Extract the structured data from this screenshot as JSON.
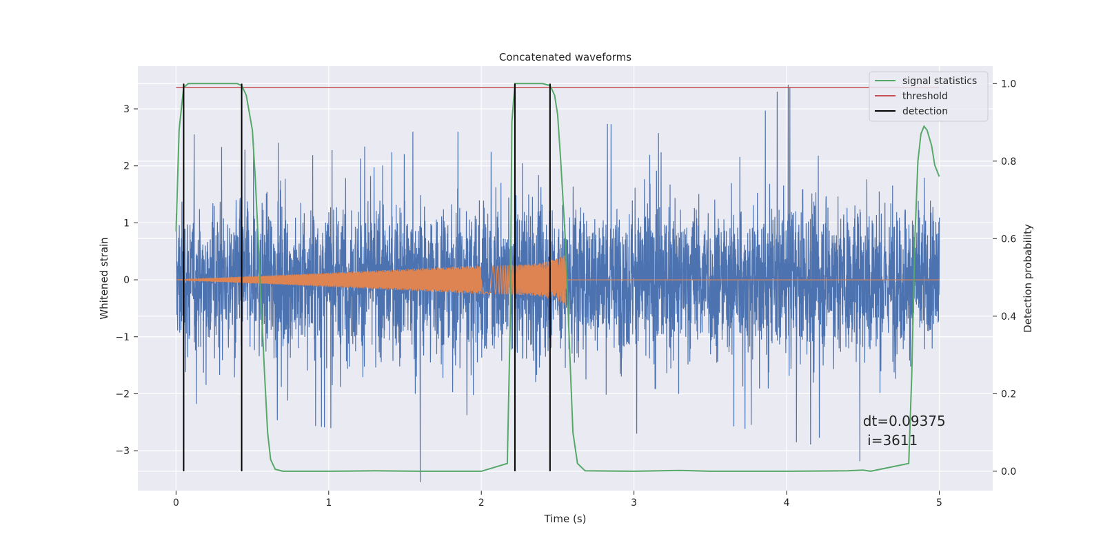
{
  "chart_data": {
    "type": "line",
    "title": "Concatenated waveforms",
    "xlabel": "Time (s)",
    "ylabel": "Whitened strain",
    "y2label": "Detection probability",
    "xlim": [
      -0.25,
      5.35
    ],
    "ylim": [
      -3.7,
      3.75
    ],
    "y2lim": [
      -0.05,
      1.045
    ],
    "xticks": [
      0,
      1,
      2,
      3,
      4,
      5
    ],
    "yticks": [
      -3,
      -2,
      -1,
      0,
      1,
      2,
      3
    ],
    "y2ticks": [
      0.0,
      0.2,
      0.4,
      0.6,
      0.8,
      1.0
    ],
    "xtick_labels": [
      "0",
      "1",
      "2",
      "3",
      "4",
      "5"
    ],
    "ytick_labels": [
      "−3",
      "−2",
      "−1",
      "0",
      "1",
      "2",
      "3"
    ],
    "y2tick_labels": [
      "0.0",
      "0.2",
      "0.4",
      "0.6",
      "0.8",
      "1.0"
    ],
    "grid": true,
    "legend_position": "top-right",
    "colors": {
      "background": "#eaeaf2",
      "strain": "#4c72b0",
      "template": "#dd8452",
      "signal_statistics": "#55a868",
      "threshold": "#c44e52",
      "detection": "#000000"
    },
    "strain": {
      "x_range": [
        0,
        5
      ],
      "sample_spacing": 0.0012,
      "typical_range": [
        -0.9,
        0.9
      ],
      "envelope_x": [
        0.0,
        0.5,
        1.0,
        1.5,
        2.0,
        2.5,
        3.0,
        3.5,
        4.0,
        4.5,
        5.0
      ],
      "envelope_max": [
        2.6,
        2.4,
        2.5,
        2.6,
        2.6,
        2.8,
        2.7,
        2.6,
        3.4,
        2.8,
        2.7
      ],
      "envelope_min": [
        -2.1,
        -2.4,
        -2.6,
        -2.7,
        -2.6,
        -2.6,
        -2.7,
        -2.7,
        -2.8,
        -3.2,
        -1.6
      ],
      "peak_x": 4.01,
      "peak_y": 3.42,
      "trough_x": 1.6,
      "trough_y": -3.55
    },
    "template": {
      "x": [
        0,
        2.0,
        2.1,
        2.2,
        2.3,
        2.4,
        2.5,
        2.55,
        2.56,
        5.0
      ],
      "amplitude": [
        0,
        0.25,
        0.25,
        0.26,
        0.27,
        0.3,
        0.38,
        0.45,
        0,
        0
      ]
    },
    "series": [
      {
        "name": "signal statistics",
        "x": [
          0.0,
          0.02,
          0.05,
          0.08,
          0.12,
          0.2,
          0.3,
          0.4,
          0.43,
          0.46,
          0.5,
          0.52,
          0.55,
          0.58,
          0.6,
          0.62,
          0.65,
          0.7,
          1.0,
          1.3,
          1.6,
          2.0,
          2.17,
          2.19,
          2.2,
          2.22,
          2.25,
          2.3,
          2.4,
          2.45,
          2.48,
          2.5,
          2.52,
          2.55,
          2.58,
          2.6,
          2.63,
          2.68,
          3.0,
          3.3,
          3.5,
          4.0,
          4.4,
          4.5,
          4.55,
          4.8,
          4.82,
          4.84,
          4.86,
          4.88,
          4.9,
          4.92,
          4.95,
          4.97,
          5.0
        ],
        "y": [
          0.62,
          0.88,
          0.99,
          1.0,
          1.0,
          1.0,
          1.0,
          1.0,
          0.995,
          0.97,
          0.88,
          0.75,
          0.5,
          0.25,
          0.1,
          0.03,
          0.005,
          0.0,
          0.0,
          0.001,
          0.0,
          0.0,
          0.02,
          0.4,
          0.9,
          1.0,
          1.0,
          1.0,
          1.0,
          0.995,
          0.97,
          0.92,
          0.8,
          0.6,
          0.3,
          0.1,
          0.02,
          0.001,
          0.0,
          0.002,
          0.0,
          0.0,
          0.001,
          0.003,
          0.0,
          0.02,
          0.25,
          0.6,
          0.8,
          0.87,
          0.89,
          0.88,
          0.84,
          0.79,
          0.76
        ]
      },
      {
        "name": "threshold",
        "x": [
          0,
          5
        ],
        "y": [
          0.99,
          0.99
        ]
      }
    ],
    "detections_x": [
      0.05,
      0.43,
      2.22,
      2.45
    ],
    "legend_entries": [
      "signal statistics",
      "threshold",
      "detection"
    ],
    "annotation": {
      "line1": "dt=0.09375",
      "line2": " i=3611",
      "x": 4.5,
      "y2": 0.11
    }
  }
}
